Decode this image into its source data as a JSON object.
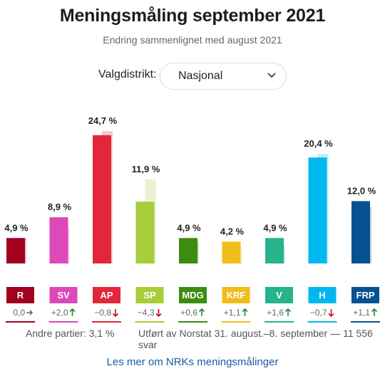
{
  "title": "Meningsmåling september 2021",
  "subtitle": "Endring sammenlignet med august 2021",
  "district": {
    "label": "Valgdistrikt:",
    "value": "Nasjonal"
  },
  "footer": {
    "other_parties": "Andre partier: 3,1 %",
    "source": "Utført av Norstat 31. august.–8. september — 11 556 svar"
  },
  "link_text": "Les mer om NRKs meningsmålinger",
  "chart_data": {
    "type": "bar",
    "categories": [
      "R",
      "SV",
      "AP",
      "SP",
      "MDG",
      "KRF",
      "V",
      "H",
      "FRP"
    ],
    "series": [
      {
        "name": "september 2021",
        "values": [
          4.9,
          8.9,
          24.7,
          11.9,
          4.9,
          4.2,
          4.9,
          20.4,
          12.0
        ]
      },
      {
        "name": "august 2021",
        "values": [
          4.9,
          6.9,
          25.5,
          16.2,
          4.3,
          3.1,
          3.3,
          21.1,
          10.9
        ]
      }
    ],
    "value_labels": [
      "4,9 %",
      "8,9 %",
      "24,7 %",
      "11,9 %",
      "4,9 %",
      "4,2 %",
      "4,9 %",
      "20,4 %",
      "12,0 %"
    ],
    "changes": [
      {
        "text": "0,0",
        "dir": "flat"
      },
      {
        "text": "+2,0",
        "dir": "up"
      },
      {
        "text": "−0,8",
        "dir": "down"
      },
      {
        "text": "−4,3",
        "dir": "down"
      },
      {
        "text": "+0,6",
        "dir": "up"
      },
      {
        "text": "+1,1",
        "dir": "up"
      },
      {
        "text": "+1,6",
        "dir": "up"
      },
      {
        "text": "−0,7",
        "dir": "down"
      },
      {
        "text": "+1,1",
        "dir": "up"
      }
    ],
    "colors": [
      "#a1001e",
      "#dd49b8",
      "#e3263a",
      "#a7cd3a",
      "#3c8c12",
      "#f0bd1b",
      "#25b48c",
      "#00b8ef",
      "#06518f"
    ],
    "arrow_colors": {
      "up": "#1f8a2f",
      "down": "#d0021b",
      "flat": "#666666"
    },
    "ylim": [
      0,
      25.5
    ]
  }
}
